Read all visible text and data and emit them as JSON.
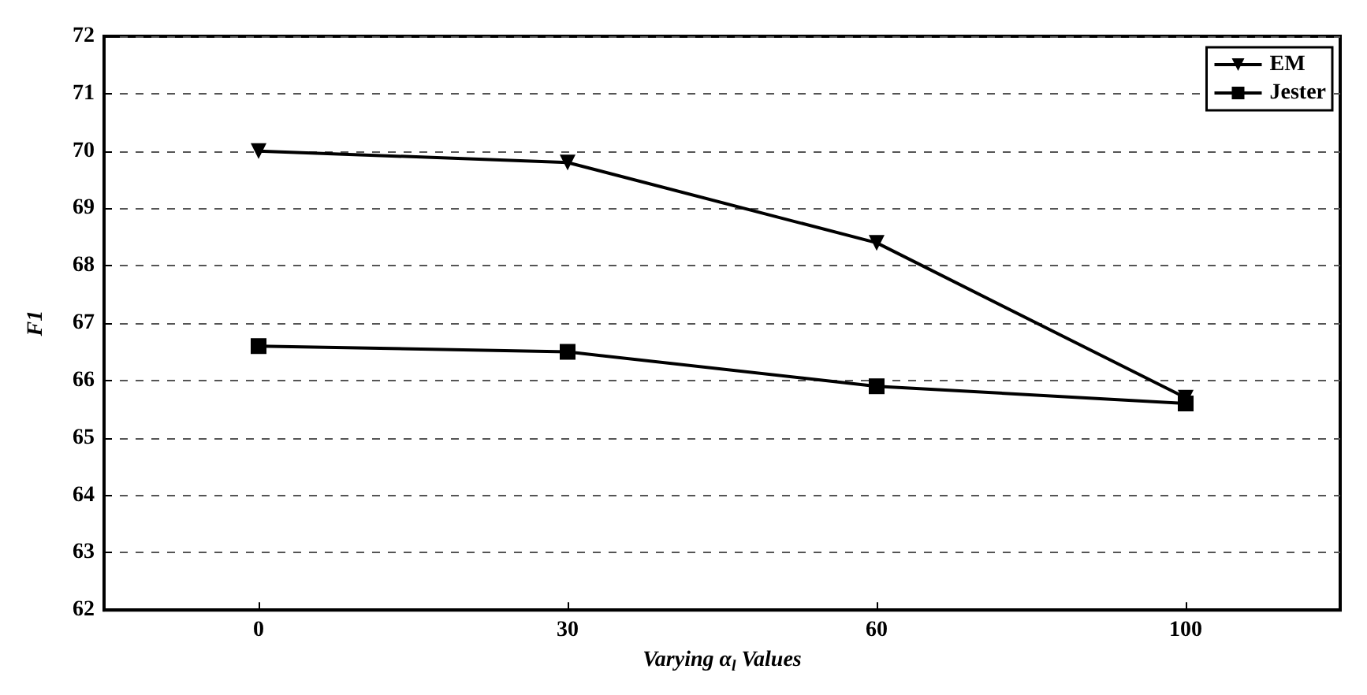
{
  "chart_data": {
    "type": "line",
    "xlabel": "Varying α$_{l}$ Values",
    "ylabel": "F1",
    "categories": [
      "0",
      "30",
      "60",
      "100"
    ],
    "series": [
      {
        "name": "EM",
        "color": "#000000",
        "marker": "triangle",
        "values": [
          70.0,
          69.8,
          68.4,
          65.7
        ]
      },
      {
        "name": "Jester",
        "color": "#000000",
        "marker": "square",
        "values": [
          66.6,
          66.5,
          65.9,
          65.6
        ]
      }
    ],
    "ylim": [
      62,
      72
    ],
    "yticks": [
      62,
      63,
      64,
      65,
      66,
      67,
      68,
      69,
      70,
      71,
      72
    ],
    "grid": "y",
    "legend": "top right",
    "line_style": "solid"
  }
}
